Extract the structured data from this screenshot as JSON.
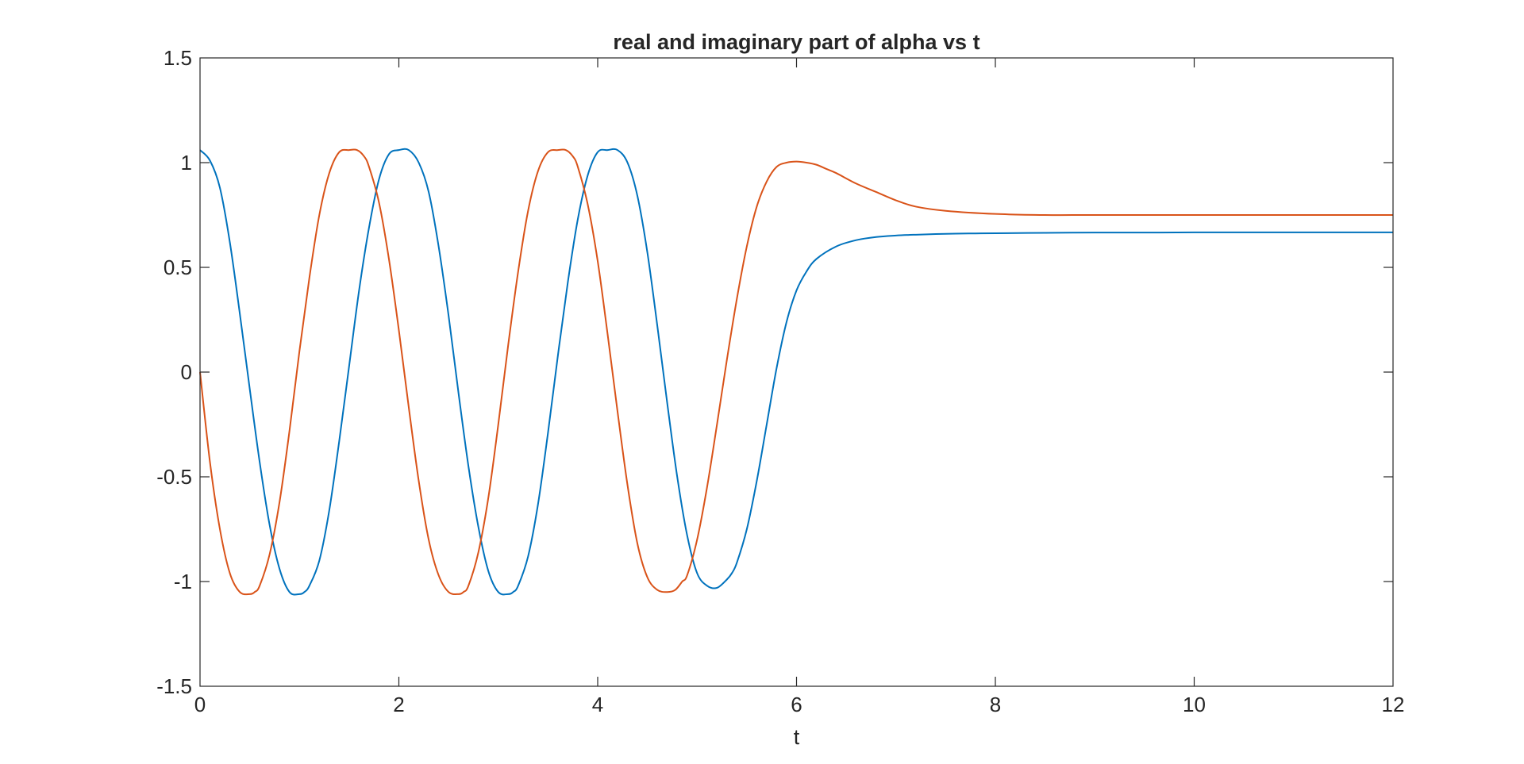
{
  "chart_data": {
    "type": "line",
    "title": "real and imaginary part of alpha vs t",
    "xlabel": "t",
    "ylabel": "",
    "xlim": [
      0,
      12
    ],
    "ylim": [
      -1.5,
      1.5
    ],
    "xticks": [
      0,
      2,
      4,
      6,
      8,
      10,
      12
    ],
    "yticks": [
      -1.5,
      -1,
      -0.5,
      0,
      0.5,
      1,
      1.5
    ],
    "xtick_labels": [
      "0",
      "2",
      "4",
      "6",
      "8",
      "10",
      "12"
    ],
    "ytick_labels": [
      "-1.5",
      "-1",
      "-0.5",
      "0",
      "0.5",
      "1",
      "1.5"
    ],
    "grid": false,
    "box": true,
    "series": [
      {
        "color": "#0072BD",
        "x": [
          0,
          0.1,
          0.2,
          0.3,
          0.4,
          0.5,
          0.6,
          0.7,
          0.8,
          0.9,
          1.0,
          1.05,
          1.1,
          1.2,
          1.3,
          1.4,
          1.5,
          1.6,
          1.7,
          1.8,
          1.9,
          2.0,
          2.1,
          2.2,
          2.3,
          2.4,
          2.5,
          2.6,
          2.7,
          2.8,
          2.9,
          3.0,
          3.1,
          3.15,
          3.2,
          3.3,
          3.4,
          3.5,
          3.6,
          3.7,
          3.8,
          3.9,
          4.0,
          4.1,
          4.2,
          4.3,
          4.4,
          4.5,
          4.6,
          4.7,
          4.8,
          4.9,
          5.0,
          5.1,
          5.2,
          5.3,
          5.35,
          5.4,
          5.5,
          5.6,
          5.7,
          5.8,
          5.9,
          6.0,
          6.1,
          6.2,
          6.4,
          6.6,
          6.8,
          7.0,
          7.2,
          7.4,
          7.6,
          7.8,
          8.0,
          8.5,
          9.0,
          9.5,
          10.0,
          11.0,
          12.0
        ],
        "y": [
          1.06,
          1.01,
          0.88,
          0.62,
          0.28,
          -0.08,
          -0.43,
          -0.73,
          -0.94,
          -1.05,
          -1.06,
          -1.05,
          -1.02,
          -0.9,
          -0.66,
          -0.33,
          0.03,
          0.39,
          0.69,
          0.92,
          1.04,
          1.06,
          1.06,
          1.0,
          0.86,
          0.6,
          0.27,
          -0.1,
          -0.45,
          -0.74,
          -0.95,
          -1.05,
          -1.06,
          -1.05,
          -1.02,
          -0.88,
          -0.63,
          -0.29,
          0.08,
          0.43,
          0.73,
          0.94,
          1.05,
          1.06,
          1.06,
          1.0,
          0.84,
          0.57,
          0.22,
          -0.15,
          -0.5,
          -0.78,
          -0.96,
          -1.02,
          -1.03,
          -0.99,
          -0.96,
          -0.91,
          -0.75,
          -0.52,
          -0.25,
          0.02,
          0.24,
          0.39,
          0.48,
          0.54,
          0.6,
          0.63,
          0.645,
          0.652,
          0.656,
          0.659,
          0.661,
          0.662,
          0.663,
          0.665,
          0.666,
          0.666,
          0.667,
          0.667,
          0.667
        ]
      },
      {
        "color": "#D95319",
        "x": [
          0,
          0.1,
          0.2,
          0.3,
          0.4,
          0.5,
          0.55,
          0.6,
          0.7,
          0.8,
          0.9,
          1.0,
          1.1,
          1.2,
          1.3,
          1.4,
          1.5,
          1.58,
          1.65,
          1.7,
          1.8,
          1.9,
          2.0,
          2.1,
          2.2,
          2.3,
          2.4,
          2.5,
          2.6,
          2.65,
          2.7,
          2.8,
          2.9,
          3.0,
          3.1,
          3.2,
          3.3,
          3.4,
          3.5,
          3.6,
          3.68,
          3.75,
          3.8,
          3.9,
          4.0,
          4.1,
          4.2,
          4.3,
          4.4,
          4.5,
          4.6,
          4.7,
          4.78,
          4.85,
          4.9,
          5.0,
          5.1,
          5.2,
          5.3,
          5.4,
          5.5,
          5.6,
          5.7,
          5.8,
          5.9,
          6.0,
          6.1,
          6.2,
          6.3,
          6.4,
          6.6,
          6.8,
          7.0,
          7.2,
          7.5,
          8.0,
          8.5,
          9.0,
          10.0,
          11.0,
          12.0
        ],
        "y": [
          0,
          -0.43,
          -0.75,
          -0.96,
          -1.05,
          -1.06,
          -1.05,
          -1.02,
          -0.87,
          -0.62,
          -0.28,
          0.1,
          0.45,
          0.75,
          0.95,
          1.05,
          1.06,
          1.06,
          1.03,
          0.98,
          0.81,
          0.54,
          0.2,
          -0.17,
          -0.52,
          -0.8,
          -0.97,
          -1.05,
          -1.06,
          -1.05,
          -1.02,
          -0.86,
          -0.6,
          -0.25,
          0.13,
          0.48,
          0.77,
          0.96,
          1.05,
          1.06,
          1.06,
          1.03,
          0.98,
          0.8,
          0.53,
          0.18,
          -0.19,
          -0.54,
          -0.82,
          -0.98,
          -1.04,
          -1.05,
          -1.04,
          -1.0,
          -0.97,
          -0.8,
          -0.55,
          -0.25,
          0.06,
          0.35,
          0.6,
          0.79,
          0.91,
          0.98,
          1.0,
          1.005,
          1.0,
          0.99,
          0.97,
          0.95,
          0.9,
          0.86,
          0.82,
          0.79,
          0.77,
          0.755,
          0.75,
          0.75,
          0.75,
          0.75,
          0.75
        ]
      }
    ]
  }
}
